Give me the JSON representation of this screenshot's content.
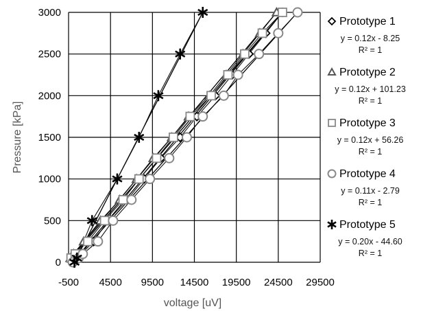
{
  "chart_data": {
    "type": "scatter",
    "title": "",
    "xlabel": "voltage [uV]",
    "ylabel": "Pressure [kPa]",
    "xlim": [
      -500,
      29500
    ],
    "ylim": [
      0,
      3000
    ],
    "x_ticks": [
      -500,
      4500,
      9500,
      14500,
      19500,
      24500,
      29500
    ],
    "x_tick_labels": [
      "-500",
      "4500",
      "9500",
      "14500",
      "19500",
      "24500",
      "29500"
    ],
    "y_ticks": [
      0,
      500,
      1000,
      1500,
      2000,
      2500,
      3000
    ],
    "y_tick_labels": [
      "0",
      "500",
      "1000",
      "1500",
      "2000",
      "2500",
      "3000"
    ],
    "grid": true,
    "legend_position": "right",
    "series": [
      {
        "name": "Prototype 1",
        "marker": "diamond",
        "equation": "y = 0.12x - 8.25",
        "r2": "R² = 1",
        "points": [
          [
            0,
            0
          ],
          [
            500,
            50
          ],
          [
            1000,
            100
          ],
          [
            2500,
            250
          ],
          [
            4200,
            500
          ],
          [
            6500,
            750
          ],
          [
            8500,
            1000
          ],
          [
            10500,
            1250
          ],
          [
            12800,
            1500
          ],
          [
            14800,
            1750
          ],
          [
            17000,
            2000
          ],
          [
            19000,
            2250
          ],
          [
            21000,
            2500
          ],
          [
            23000,
            2750
          ],
          [
            25000,
            3000
          ]
        ]
      },
      {
        "name": "Prototype 2",
        "marker": "triangle",
        "equation": "y = 0.12x + 101.23",
        "r2": "R² = 1",
        "points": [
          [
            -300,
            50
          ],
          [
            100,
            100
          ],
          [
            1300,
            250
          ],
          [
            3300,
            500
          ],
          [
            5600,
            750
          ],
          [
            7600,
            1000
          ],
          [
            9600,
            1250
          ],
          [
            11800,
            1500
          ],
          [
            13800,
            1750
          ],
          [
            16300,
            2000
          ],
          [
            18300,
            2250
          ],
          [
            20300,
            2500
          ],
          [
            22300,
            2750
          ],
          [
            24300,
            3000
          ]
        ]
      },
      {
        "name": "Prototype 3",
        "marker": "square",
        "equation": "y = 0.12x + 56.26",
        "r2": "R² = 1",
        "points": [
          [
            -200,
            50
          ],
          [
            300,
            100
          ],
          [
            1800,
            250
          ],
          [
            3800,
            500
          ],
          [
            6000,
            750
          ],
          [
            7900,
            1000
          ],
          [
            10000,
            1250
          ],
          [
            12000,
            1500
          ],
          [
            14000,
            1750
          ],
          [
            16500,
            2000
          ],
          [
            18500,
            2250
          ],
          [
            20500,
            2500
          ],
          [
            22600,
            2750
          ],
          [
            25000,
            3000
          ]
        ]
      },
      {
        "name": "Prototype 4",
        "marker": "circle",
        "equation": "y = 0.11x - 2.79",
        "r2": "R² = 1",
        "points": [
          [
            0,
            0
          ],
          [
            700,
            50
          ],
          [
            1200,
            100
          ],
          [
            3000,
            250
          ],
          [
            4800,
            500
          ],
          [
            7000,
            750
          ],
          [
            9200,
            1000
          ],
          [
            11500,
            1250
          ],
          [
            13600,
            1500
          ],
          [
            15500,
            1750
          ],
          [
            18000,
            2000
          ],
          [
            19700,
            2250
          ],
          [
            22200,
            2500
          ],
          [
            24500,
            2750
          ],
          [
            26800,
            3000
          ]
        ]
      },
      {
        "name": "Prototype 5",
        "marker": "asterisk",
        "equation": "y = 0.20x - 44.60",
        "r2": "R² = 1",
        "points": [
          [
            200,
            0
          ],
          [
            500,
            50
          ],
          [
            2300,
            500
          ],
          [
            5300,
            1000
          ],
          [
            7900,
            1500
          ],
          [
            10200,
            2000
          ],
          [
            12800,
            2500
          ],
          [
            15500,
            3000
          ]
        ]
      }
    ],
    "trendlines": true
  }
}
